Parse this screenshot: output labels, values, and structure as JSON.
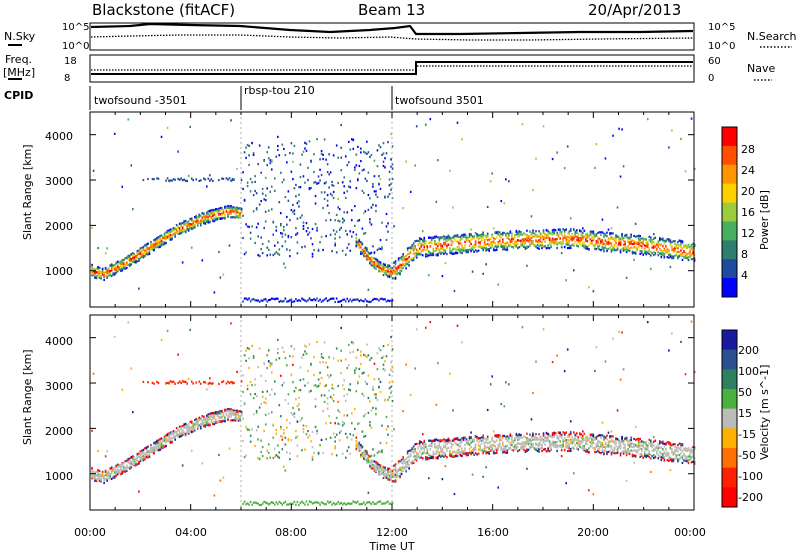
{
  "header": {
    "title": "Blackstone (fitACF)",
    "beam": "Beam 13",
    "date": "20/Apr/2013"
  },
  "noise_panel": {
    "left_label": "N.Sky",
    "right_label": "N.Search",
    "left_ticks": [
      "10^5",
      "10^0"
    ],
    "right_ticks": [
      "10^5",
      "10^0"
    ]
  },
  "freq_panel": {
    "left_label_1": "Freq.",
    "left_label_2": "[MHz]",
    "right_label": "Nave",
    "left_ticks": [
      "18",
      "8"
    ],
    "right_ticks": [
      "60",
      "0"
    ]
  },
  "cpid": {
    "label": "CPID",
    "segments": [
      {
        "name": "twofsound -3501",
        "start_hour": 0,
        "end_hour": 6
      },
      {
        "name": "rbsp-tou 210",
        "start_hour": 6,
        "end_hour": 12
      },
      {
        "name": "twofsound 3501",
        "start_hour": 12,
        "end_hour": 24
      }
    ]
  },
  "x_axis": {
    "label": "Time UT",
    "ticks": [
      "00:00",
      "04:00",
      "08:00",
      "12:00",
      "16:00",
      "20:00",
      "00:00"
    ]
  },
  "power_panel": {
    "ylabel": "Slant Range [km]",
    "yticks": [
      "1000",
      "2000",
      "3000",
      "4000"
    ],
    "colorbar_label": "Power [dB]",
    "colorbar_ticks": [
      "4",
      "8",
      "12",
      "16",
      "20",
      "24",
      "28"
    ],
    "colors": [
      "#0000ff",
      "#1e4aa0",
      "#2e7d6e",
      "#46b060",
      "#9bcc3c",
      "#ffd000",
      "#ff9600",
      "#ff5000",
      "#ff0000"
    ]
  },
  "velocity_panel": {
    "ylabel": "Slant Range [km]",
    "yticks": [
      "1000",
      "2000",
      "3000",
      "4000"
    ],
    "colorbar_label": "Velocity [m s^-1]",
    "colorbar_ticks": [
      "200",
      "100",
      "50",
      "15",
      "-15",
      "-50",
      "-100",
      "-200"
    ],
    "colors": [
      "#1a1aa0",
      "#2a5090",
      "#2e8060",
      "#4cb040",
      "#bbbbbb",
      "#ffb000",
      "#ff7000",
      "#ff2000",
      "#ff0000"
    ]
  },
  "chart_data": {
    "type": "heatmap",
    "x_range_hours": [
      0,
      24
    ],
    "y_range_km": [
      200,
      4500
    ],
    "primary_echo_band": [
      {
        "hour": 0.0,
        "range_km": 1000
      },
      {
        "hour": 0.5,
        "range_km": 900
      },
      {
        "hour": 1.5,
        "range_km": 1200
      },
      {
        "hour": 2.5,
        "range_km": 1550
      },
      {
        "hour": 3.5,
        "range_km": 1900
      },
      {
        "hour": 4.5,
        "range_km": 2150
      },
      {
        "hour": 5.5,
        "range_km": 2300
      },
      {
        "hour": 10.5,
        "range_km": 1700
      },
      {
        "hour": 11.0,
        "range_km": 1300
      },
      {
        "hour": 11.5,
        "range_km": 1050
      },
      {
        "hour": 12.0,
        "range_km": 950
      },
      {
        "hour": 13.0,
        "range_km": 1500
      },
      {
        "hour": 16.0,
        "range_km": 1650
      },
      {
        "hour": 19.0,
        "range_km": 1700
      },
      {
        "hour": 22.0,
        "range_km": 1550
      },
      {
        "hour": 24.0,
        "range_km": 1400
      }
    ]
  }
}
